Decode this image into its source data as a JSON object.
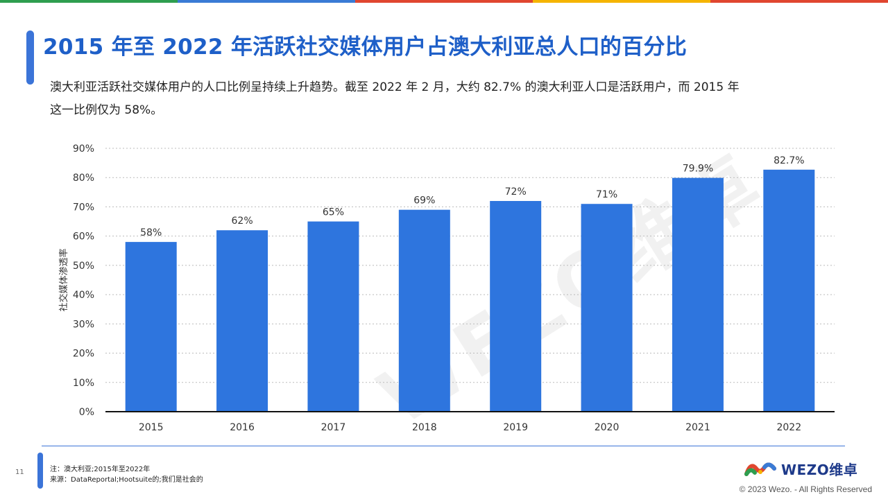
{
  "top_bar_colors": [
    "#2e9e4f",
    "#3a7bd5",
    "#e0462f",
    "#f5b400",
    "#e0462f"
  ],
  "title": "2015 年至 2022 年活跃社交媒体用户占澳大利亚总人口的百分比",
  "subtitle": "澳大利亚活跃社交媒体用户的人口比例呈持续上升趋势。截至 2022 年 2 月，大约 82.7% 的澳大利亚人口是活跃用户，而 2015 年这一比例仅为 58%。",
  "chart_data": {
    "type": "bar",
    "categories": [
      "2015",
      "2016",
      "2017",
      "2018",
      "2019",
      "2020",
      "2021",
      "2022"
    ],
    "values": [
      58,
      62,
      65,
      69,
      72,
      71,
      79.9,
      82.7
    ],
    "data_labels": [
      "58%",
      "62%",
      "65%",
      "69%",
      "72%",
      "71%",
      "79.9%",
      "82.7%"
    ],
    "ylabel": "社交媒体渗透率",
    "ylim": [
      0,
      90
    ],
    "yticks": [
      0,
      10,
      20,
      30,
      40,
      50,
      60,
      70,
      80,
      90
    ],
    "ytick_labels": [
      "0%",
      "10%",
      "20%",
      "30%",
      "40%",
      "50%",
      "60%",
      "70%",
      "80%",
      "90%"
    ],
    "grid": "horizontal dotted",
    "bar_color": "#2e75de"
  },
  "watermark": "WEZO维卓",
  "footer": {
    "page_number": "11",
    "note": "注：澳大利亚;2015年至2022年",
    "source": "来源：DataReportal;Hootsuite的;我们是社会的",
    "logo_text": "WEZO维卓",
    "copyright": "© 2023 Wezo. - All Rights Reserved"
  }
}
